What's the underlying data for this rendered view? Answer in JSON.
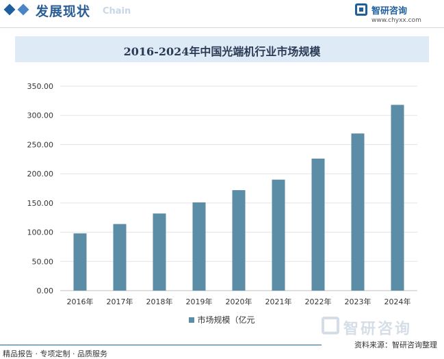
{
  "header": {
    "section_title": "发展现状",
    "section_en": "Chain",
    "brand_name": "智研咨询",
    "brand_url": "www.chyxx.com",
    "accent": "#1e5f9e"
  },
  "watermark": {
    "logo_text": "智研咨询"
  },
  "chart_data": {
    "type": "bar",
    "title": "2016-2024年中国光端机行业市场规模",
    "categories": [
      "2016年",
      "2017年",
      "2018年",
      "2019年",
      "2020年",
      "2021年",
      "2022年",
      "2023年",
      "2024年"
    ],
    "series": [
      {
        "name": "市场规模（亿元",
        "values": [
          98,
          114,
          132,
          151,
          172,
          190,
          226,
          269,
          318
        ]
      }
    ],
    "ylim": [
      0,
      350
    ],
    "yticks": [
      "0.00",
      "50.00",
      "100.00",
      "150.00",
      "200.00",
      "250.00",
      "300.00",
      "350.00"
    ],
    "grid": true,
    "legend": "bottom",
    "bar_color": "#5b8ea6"
  },
  "source": "资料来源：智研咨询整理",
  "footer": "精品报告 · 专项定制 · 品质服务"
}
